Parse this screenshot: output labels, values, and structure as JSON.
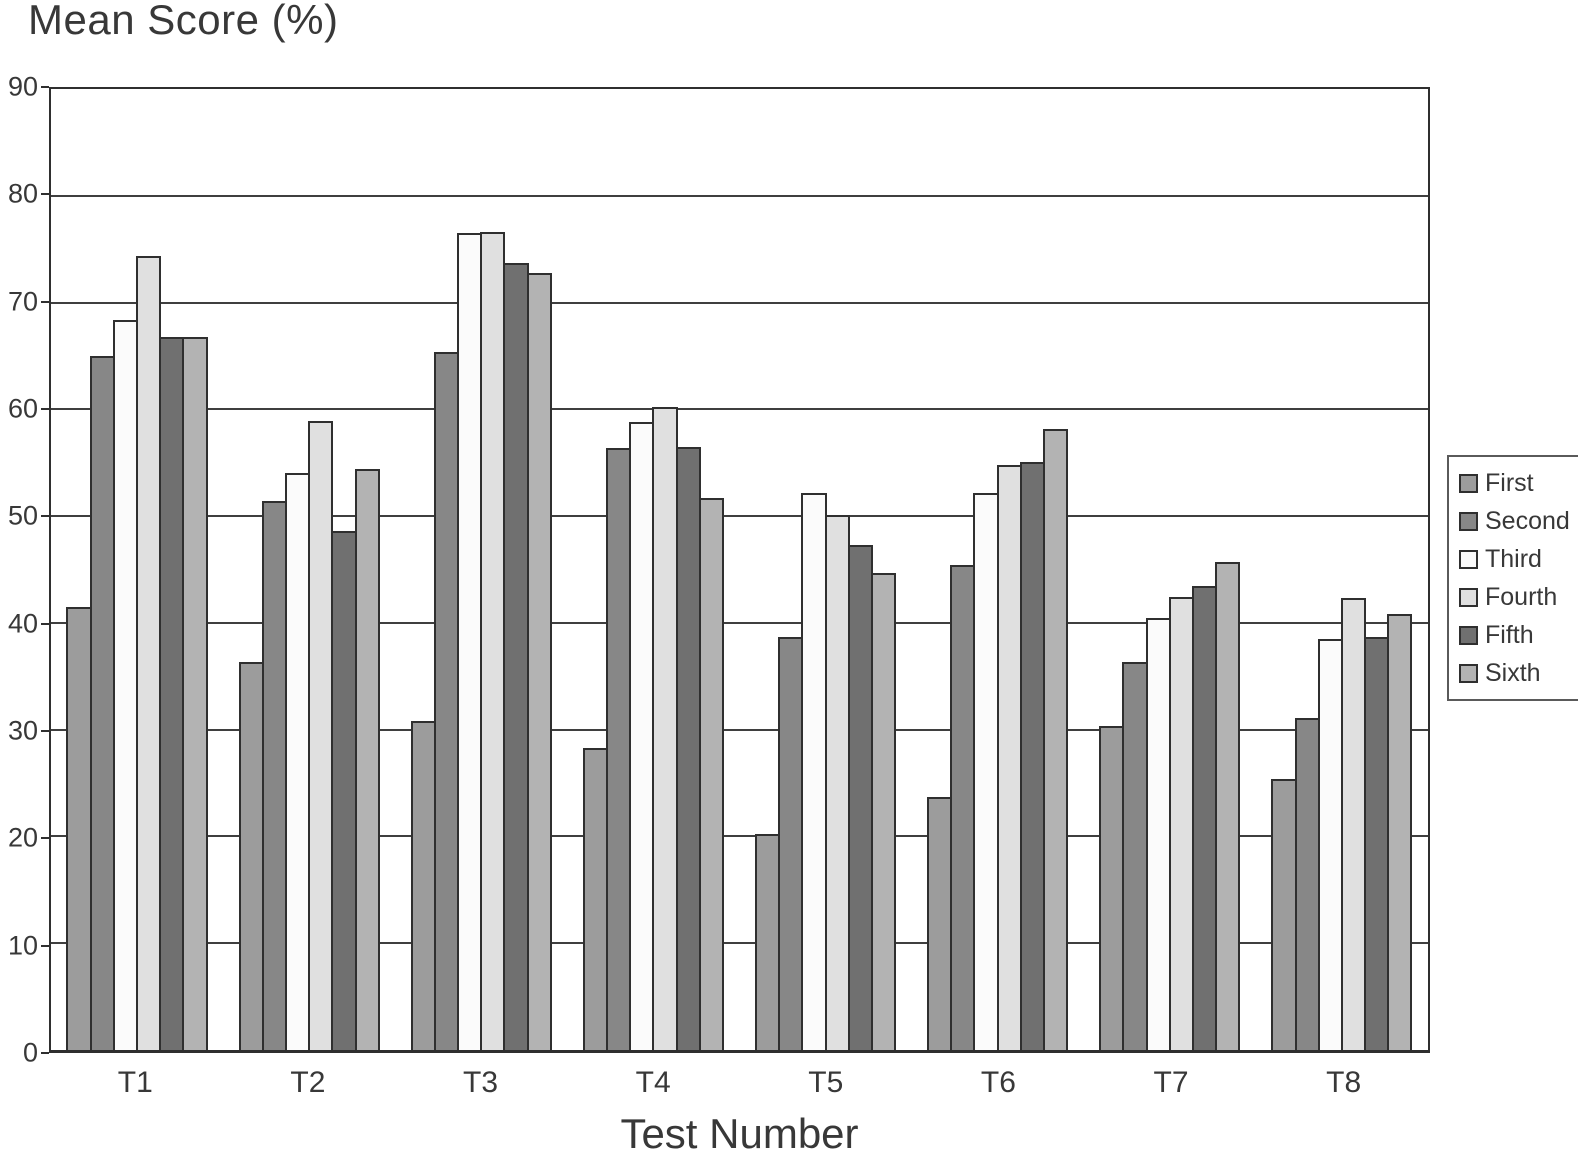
{
  "chart_data": {
    "type": "bar",
    "title": "Mean Score (%)",
    "xlabel": "Test Number",
    "ylabel": "Mean Score (%)",
    "categories": [
      "T1",
      "T2",
      "T3",
      "T4",
      "T5",
      "T6",
      "T7",
      "T8"
    ],
    "series": [
      {
        "name": "First",
        "color": "#9c9c9c",
        "values": [
          41.5,
          36.3,
          30.8,
          28.3,
          20.2,
          23.7,
          30.3,
          25.4
        ]
      },
      {
        "name": "Second",
        "color": "#878787",
        "values": [
          65.0,
          51.4,
          65.4,
          56.4,
          38.7,
          45.4,
          36.3,
          31.1
        ]
      },
      {
        "name": "Third",
        "color": "#fbfbfb",
        "values": [
          68.4,
          54.0,
          76.5,
          58.8,
          52.2,
          52.2,
          40.5,
          38.5
        ]
      },
      {
        "name": "Fourth",
        "color": "#e0e0e0",
        "values": [
          74.4,
          58.9,
          76.6,
          60.2,
          50.1,
          54.8,
          42.4,
          42.3
        ]
      },
      {
        "name": "Fifth",
        "color": "#707070",
        "values": [
          66.8,
          48.6,
          73.7,
          56.5,
          47.3,
          55.1,
          43.5,
          38.7
        ]
      },
      {
        "name": "Sixth",
        "color": "#b3b3b3",
        "values": [
          66.8,
          54.4,
          72.8,
          51.7,
          44.7,
          58.2,
          45.7,
          40.8
        ]
      }
    ],
    "ylim": [
      0,
      90
    ],
    "yticks": [
      0,
      10,
      20,
      30,
      40,
      50,
      60,
      70,
      80,
      90
    ],
    "grid": true,
    "legend_position": "right",
    "colors": {
      "bar_border": "#2f2f2f",
      "grid_line": "#3f3f3f",
      "plot_border": "#2f2f2f",
      "text": "#383838"
    }
  }
}
